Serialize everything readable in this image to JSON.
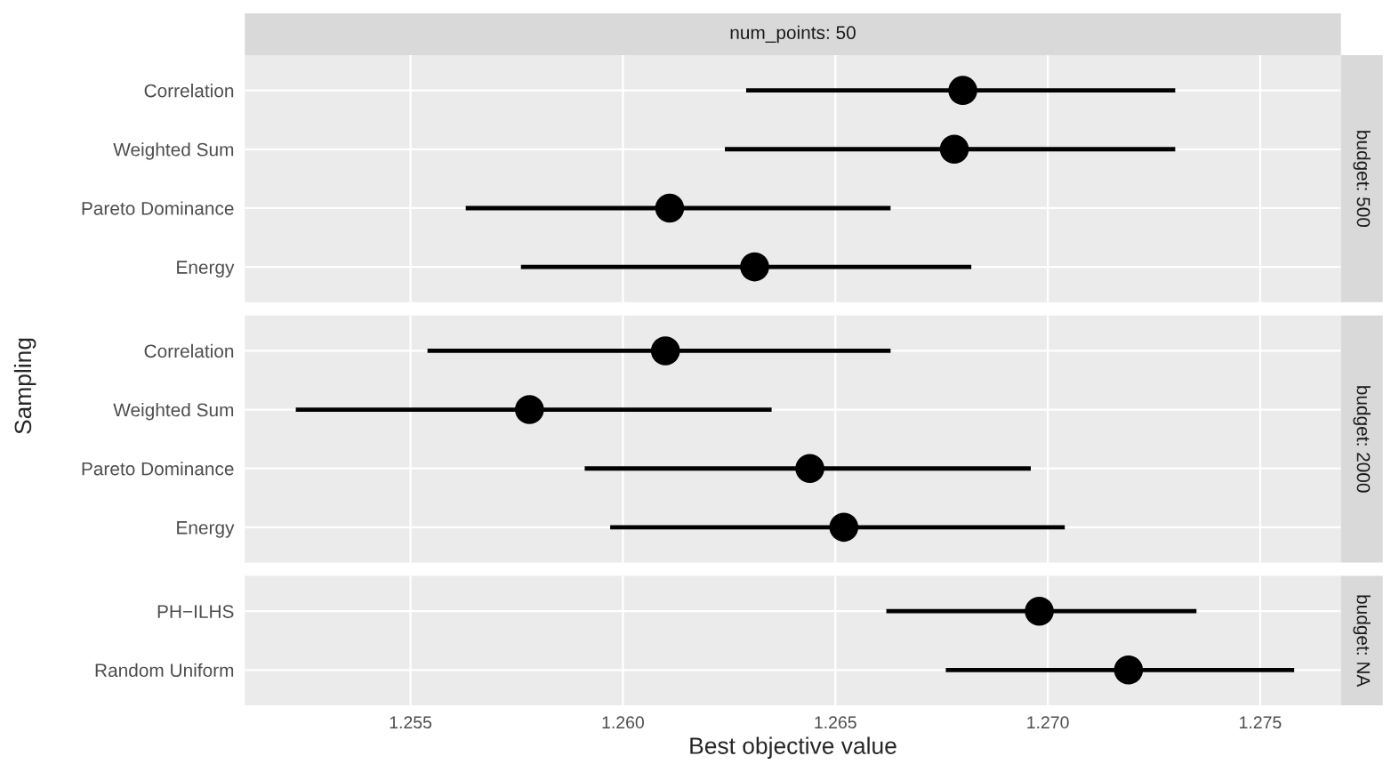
{
  "chart_data": [
    {
      "type": "scatter",
      "orientation": "horizontal",
      "title": "num_points: 50",
      "annotations": [
        "budget: 500"
      ],
      "categories": [
        "Correlation",
        "Weighted Sum",
        "Pareto Dominance",
        "Energy"
      ],
      "values": [
        1.268,
        1.2678,
        1.2611,
        1.2631
      ],
      "errors": [
        [
          1.2629,
          1.273
        ],
        [
          1.2624,
          1.273
        ],
        [
          1.2563,
          1.2663
        ],
        [
          1.2576,
          1.2682
        ]
      ],
      "color": "#000000",
      "marker": "circle",
      "xlim": [
        1.2511,
        1.2769
      ],
      "xticks": [
        1.255,
        1.26,
        1.265,
        1.27,
        1.275
      ],
      "grid": true,
      "tick_labels": "y"
    },
    {
      "type": "scatter",
      "orientation": "horizontal",
      "ylabel": "Sampling",
      "annotations": [
        "budget: 2000"
      ],
      "categories": [
        "Correlation",
        "Weighted Sum",
        "Pareto Dominance",
        "Energy"
      ],
      "values": [
        1.261,
        1.2578,
        1.2644,
        1.2652
      ],
      "errors": [
        [
          1.2554,
          1.2663
        ],
        [
          1.2523,
          1.2635
        ],
        [
          1.2591,
          1.2696
        ],
        [
          1.2597,
          1.2704
        ]
      ],
      "color": "#000000",
      "marker": "circle",
      "xlim": [
        1.2511,
        1.2769
      ],
      "xticks": [
        1.255,
        1.26,
        1.265,
        1.27,
        1.275
      ],
      "grid": true,
      "tick_labels": "y"
    },
    {
      "type": "scatter",
      "orientation": "horizontal",
      "xlabel": "Best objective value",
      "annotations": [
        "budget: NA"
      ],
      "categories": [
        "PH−ILHS",
        "Random Uniform"
      ],
      "values": [
        1.2698,
        1.2719
      ],
      "errors": [
        [
          1.2662,
          1.2735
        ],
        [
          1.2676,
          1.2758
        ]
      ],
      "color": "#000000",
      "marker": "circle",
      "xlim": [
        1.2511,
        1.2769
      ],
      "xticks": [
        1.255,
        {
          "value": 1.26,
          "label": "1.260"
        },
        1.265,
        {
          "value": 1.27,
          "label": "1.270"
        },
        1.275
      ],
      "grid": true
    }
  ]
}
